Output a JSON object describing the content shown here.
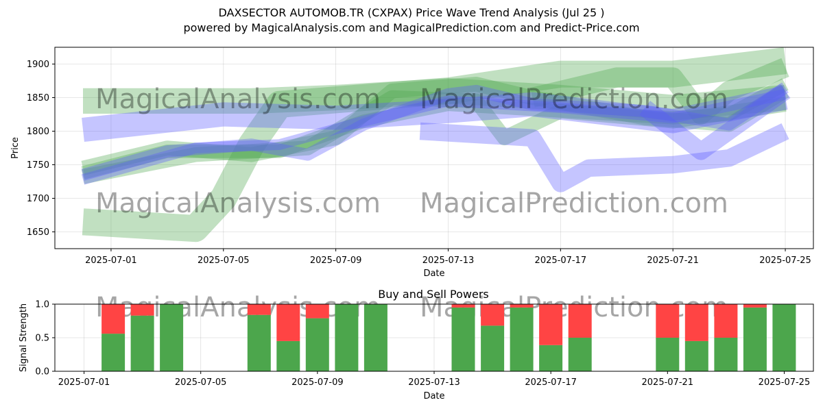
{
  "header": {
    "title": "DAXSECTOR AUTOMOB.TR (CXPAX) Price Wave Trend Analysis (Jul 25 )",
    "subtitle": "powered by MagicalAnalysis.com and MagicalPrediction.com and Predict-Price.com"
  },
  "watermarks": [
    "MagicalAnalysis.com",
    "MagicalPrediction.com"
  ],
  "colors": {
    "green_band": "#4ca64c",
    "blue_band": "#5a5aff",
    "buy": "#4ca64c",
    "sell": "#ff4444"
  },
  "chart_data": [
    {
      "type": "area",
      "title": "",
      "xlabel": "Date",
      "ylabel": "Price",
      "x_range": [
        "2025-06-29",
        "2025-07-26"
      ],
      "ylim": [
        1625,
        1925
      ],
      "y_ticks": [
        1650,
        1700,
        1750,
        1800,
        1850,
        1900
      ],
      "x_ticks": [
        "2025-07-01",
        "2025-07-05",
        "2025-07-09",
        "2025-07-13",
        "2025-07-17",
        "2025-07-21",
        "2025-07-25"
      ],
      "grid": true,
      "series": [
        {
          "color": "green",
          "band": 40,
          "points": [
            [
              "2025-06-30",
              1665
            ],
            [
              "2025-07-04",
              1655
            ],
            [
              "2025-07-05",
              1700
            ],
            [
              "2025-07-06",
              1780
            ],
            [
              "2025-07-07",
              1840
            ],
            [
              "2025-07-10",
              1850
            ],
            [
              "2025-07-13",
              1860
            ],
            [
              "2025-07-17",
              1885
            ],
            [
              "2025-07-21",
              1885
            ],
            [
              "2025-07-25",
              1905
            ]
          ]
        },
        {
          "color": "green",
          "band": 38,
          "points": [
            [
              "2025-06-30",
              1845
            ],
            [
              "2025-07-06",
              1845
            ],
            [
              "2025-07-09",
              1850
            ],
            [
              "2025-07-13",
              1860
            ],
            [
              "2025-07-17",
              1850
            ],
            [
              "2025-07-21",
              1835
            ],
            [
              "2025-07-25",
              1850
            ]
          ]
        },
        {
          "color": "green",
          "band": 22,
          "points": [
            [
              "2025-06-30",
              1745
            ],
            [
              "2025-07-03",
              1775
            ],
            [
              "2025-07-06",
              1765
            ],
            [
              "2025-07-09",
              1790
            ],
            [
              "2025-07-11",
              1860
            ],
            [
              "2025-07-14",
              1870
            ],
            [
              "2025-07-16",
              1850
            ],
            [
              "2025-07-20",
              1820
            ],
            [
              "2025-07-23",
              1810
            ],
            [
              "2025-07-25",
              1860
            ]
          ]
        },
        {
          "color": "green",
          "band": 20,
          "points": [
            [
              "2025-06-30",
              1738
            ],
            [
              "2025-07-03",
              1770
            ],
            [
              "2025-07-07",
              1770
            ],
            [
              "2025-07-10",
              1815
            ],
            [
              "2025-07-13",
              1840
            ],
            [
              "2025-07-17",
              1830
            ],
            [
              "2025-07-21",
              1820
            ],
            [
              "2025-07-23",
              1825
            ],
            [
              "2025-07-25",
              1870
            ]
          ]
        },
        {
          "color": "green",
          "band": 22,
          "points": [
            [
              "2025-06-30",
              1732
            ],
            [
              "2025-07-04",
              1765
            ],
            [
              "2025-07-08",
              1775
            ],
            [
              "2025-07-11",
              1850
            ],
            [
              "2025-07-14",
              1845
            ],
            [
              "2025-07-15",
              1790
            ],
            [
              "2025-07-17",
              1830
            ],
            [
              "2025-07-21",
              1815
            ],
            [
              "2025-07-25",
              1840
            ]
          ]
        },
        {
          "color": "green",
          "band": 30,
          "points": [
            [
              "2025-07-16",
              1850
            ],
            [
              "2025-07-19",
              1880
            ],
            [
              "2025-07-21",
              1880
            ],
            [
              "2025-07-22",
              1825
            ],
            [
              "2025-07-23",
              1860
            ],
            [
              "2025-07-25",
              1895
            ]
          ]
        },
        {
          "color": "blue",
          "band": 36,
          "points": [
            [
              "2025-06-30",
              1802
            ],
            [
              "2025-07-05",
              1825
            ],
            [
              "2025-07-09",
              1820
            ],
            [
              "2025-07-13",
              1830
            ],
            [
              "2025-07-16",
              1840
            ],
            [
              "2025-07-21",
              1815
            ],
            [
              "2025-07-25",
              1850
            ]
          ]
        },
        {
          "color": "blue",
          "band": 18,
          "points": [
            [
              "2025-06-30",
              1735
            ],
            [
              "2025-07-03",
              1770
            ],
            [
              "2025-07-06",
              1780
            ],
            [
              "2025-07-08",
              1765
            ],
            [
              "2025-07-10",
              1810
            ],
            [
              "2025-07-13",
              1855
            ],
            [
              "2025-07-14",
              1860
            ],
            [
              "2025-07-16",
              1840
            ],
            [
              "2025-07-20",
              1830
            ],
            [
              "2025-07-23",
              1810
            ],
            [
              "2025-07-25",
              1865
            ]
          ]
        },
        {
          "color": "blue",
          "band": 16,
          "points": [
            [
              "2025-06-30",
              1728
            ],
            [
              "2025-07-04",
              1775
            ],
            [
              "2025-07-07",
              1780
            ],
            [
              "2025-07-10",
              1815
            ],
            [
              "2025-07-13",
              1845
            ],
            [
              "2025-07-17",
              1835
            ],
            [
              "2025-07-21",
              1820
            ],
            [
              "2025-07-25",
              1855
            ]
          ]
        },
        {
          "color": "blue",
          "band": 26,
          "points": [
            [
              "2025-07-12",
              1800
            ],
            [
              "2025-07-16",
              1790
            ],
            [
              "2025-07-17",
              1722
            ],
            [
              "2025-07-18",
              1745
            ],
            [
              "2025-07-21",
              1750
            ],
            [
              "2025-07-23",
              1760
            ],
            [
              "2025-07-25",
              1800
            ]
          ]
        },
        {
          "color": "blue",
          "band": 26,
          "points": [
            [
              "2025-07-20",
              1835
            ],
            [
              "2025-07-22",
              1770
            ],
            [
              "2025-07-23",
              1800
            ],
            [
              "2025-07-25",
              1860
            ]
          ]
        }
      ]
    },
    {
      "type": "bar",
      "title": "Buy and Sell Powers",
      "xlabel": "Date",
      "ylabel": "Signal Strength",
      "ylim": [
        0,
        1
      ],
      "y_ticks": [
        "0.0",
        "0.5",
        "1.0"
      ],
      "x_range": [
        "2025-06-30",
        "2025-07-26"
      ],
      "x_ticks": [
        "2025-07-01",
        "2025-07-05",
        "2025-07-09",
        "2025-07-13",
        "2025-07-17",
        "2025-07-21",
        "2025-07-25"
      ],
      "grid": true,
      "series": [
        {
          "name": "Buy",
          "color": "#4ca64c"
        },
        {
          "name": "Sell",
          "color": "#ff4444"
        }
      ],
      "bars": [
        {
          "date": "2025-07-02",
          "buy": 0.56
        },
        {
          "date": "2025-07-03",
          "buy": 0.83
        },
        {
          "date": "2025-07-04",
          "buy": 1.0
        },
        {
          "date": "2025-07-07",
          "buy": 0.84
        },
        {
          "date": "2025-07-08",
          "buy": 0.45
        },
        {
          "date": "2025-07-09",
          "buy": 0.79
        },
        {
          "date": "2025-07-10",
          "buy": 1.0
        },
        {
          "date": "2025-07-11",
          "buy": 1.0
        },
        {
          "date": "2025-07-14",
          "buy": 0.95
        },
        {
          "date": "2025-07-15",
          "buy": 0.68
        },
        {
          "date": "2025-07-16",
          "buy": 0.95
        },
        {
          "date": "2025-07-17",
          "buy": 0.39
        },
        {
          "date": "2025-07-18",
          "buy": 0.5
        },
        {
          "date": "2025-07-21",
          "buy": 0.5
        },
        {
          "date": "2025-07-22",
          "buy": 0.45
        },
        {
          "date": "2025-07-23",
          "buy": 0.5
        },
        {
          "date": "2025-07-24",
          "buy": 0.95
        },
        {
          "date": "2025-07-25",
          "buy": 1.0
        }
      ]
    }
  ]
}
